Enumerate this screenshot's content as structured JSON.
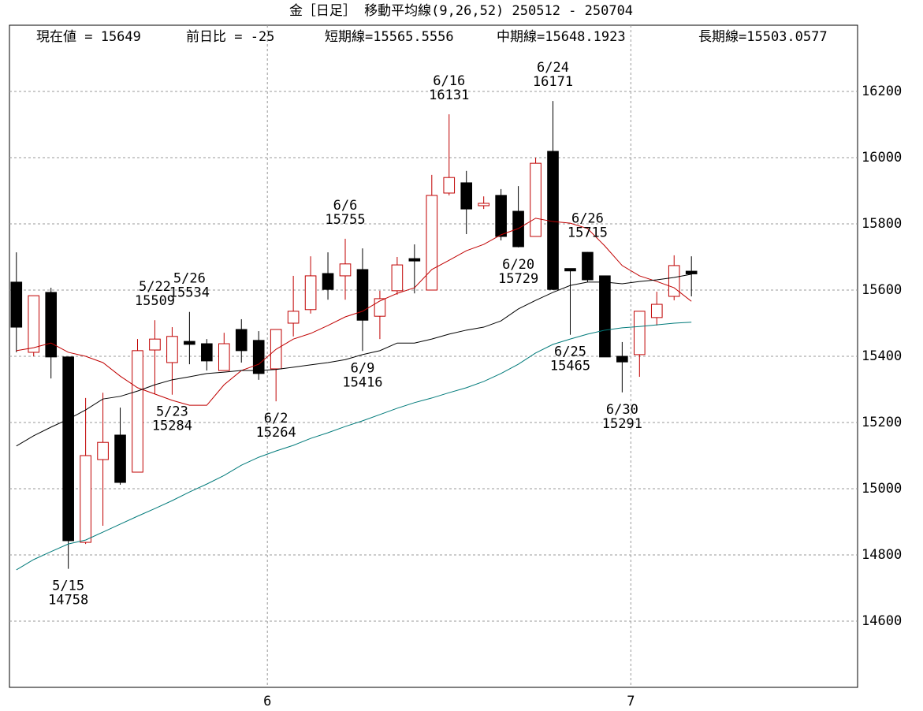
{
  "chart_data": {
    "type": "candlestick",
    "title": "金［日足］ 移動平均線(9,26,52)  250512 - 250704",
    "stats": [
      "現在値 = 15649",
      "前日比 = -25",
      "短期線=15565.5556",
      "中期線=15648.1923",
      "長期線=15503.0577"
    ],
    "x": [
      0,
      1,
      2,
      3,
      4,
      5,
      6,
      7,
      8,
      9,
      10,
      11,
      12,
      13,
      14,
      15,
      16,
      17,
      18,
      19,
      20,
      21,
      22,
      23,
      24,
      25,
      26,
      27,
      28,
      29,
      30,
      31,
      32,
      33,
      34,
      35,
      36,
      37,
      38,
      39
    ],
    "open": [
      15624,
      15412,
      15593,
      15398,
      14838,
      15088,
      15162,
      15050,
      15419,
      15381,
      15445,
      15438,
      15357,
      15481,
      15448,
      15362,
      15500,
      15541,
      15650,
      15643,
      15662,
      15521,
      15598,
      15695,
      15600,
      15893,
      15924,
      15855,
      15886,
      15838,
      15762,
      16019,
      15665,
      15714,
      15643,
      15400,
      15405,
      15517,
      15581,
      15657
    ],
    "high": [
      15714,
      15583,
      15607,
      15398,
      15274,
      15290,
      15245,
      15452,
      15509,
      15488,
      15534,
      15452,
      15471,
      15512,
      15476,
      15481,
      15643,
      15702,
      15714,
      15755,
      15726,
      15598,
      15700,
      15738,
      15948,
      16131,
      15960,
      15883,
      15905,
      15914,
      16000,
      16171,
      15665,
      15715,
      15643,
      15443,
      15536,
      15595,
      15705,
      15702
    ],
    "low": [
      15412,
      15400,
      15333,
      14758,
      14833,
      14888,
      15012,
      15050,
      15286,
      15284,
      15376,
      15357,
      15357,
      15381,
      15329,
      15264,
      15460,
      15529,
      15571,
      15571,
      15416,
      15452,
      15586,
      15590,
      15600,
      15886,
      15769,
      15845,
      15750,
      15729,
      15762,
      15600,
      15465,
      15624,
      15398,
      15291,
      15338,
      15493,
      15569,
      15581
    ],
    "close": [
      15488,
      15583,
      15398,
      14843,
      15100,
      15140,
      15019,
      15417,
      15452,
      15460,
      15436,
      15386,
      15438,
      15417,
      15348,
      15481,
      15536,
      15643,
      15602,
      15679,
      15509,
      15574,
      15676,
      15690,
      15886,
      15940,
      15845,
      15862,
      15762,
      15731,
      15983,
      15602,
      15660,
      15631,
      15398,
      15383,
      15536,
      15557,
      15674,
      15649
    ],
    "up_color": "#c00000",
    "down_color": "#000000",
    "series": [
      {
        "color": "#c00000",
        "values": [
          15417,
          15426,
          15440,
          15412,
          15400,
          15381,
          15340,
          15305,
          15286,
          15267,
          15252,
          15252,
          15314,
          15357,
          15376,
          15421,
          15452,
          15469,
          15493,
          15519,
          15536,
          15567,
          15590,
          15607,
          15662,
          15690,
          15719,
          15738,
          15767,
          15786,
          15817,
          15807,
          15802,
          15786,
          15733,
          15674,
          15643,
          15626,
          15607,
          15566
        ]
      },
      {
        "color": "#000000",
        "values": [
          15129,
          15160,
          15186,
          15210,
          15238,
          15271,
          15279,
          15295,
          15314,
          15329,
          15338,
          15348,
          15352,
          15357,
          15357,
          15360,
          15367,
          15374,
          15381,
          15390,
          15405,
          15417,
          15440,
          15440,
          15452,
          15467,
          15479,
          15488,
          15507,
          15543,
          15569,
          15593,
          15614,
          15624,
          15624,
          15619,
          15626,
          15631,
          15638,
          15648
        ]
      },
      {
        "color": "#007a7a",
        "values": [
          14755,
          14786,
          14810,
          14833,
          14845,
          14869,
          14893,
          14917,
          14940,
          14964,
          14990,
          15014,
          15040,
          15071,
          15095,
          15114,
          15131,
          15152,
          15169,
          15188,
          15205,
          15224,
          15243,
          15260,
          15274,
          15290,
          15305,
          15324,
          15348,
          15376,
          15410,
          15436,
          15452,
          15467,
          15479,
          15486,
          15490,
          15495,
          15500,
          15503
        ]
      }
    ],
    "annotations": [
      {
        "date": "5/15",
        "value": 14758,
        "x": 3,
        "side": "below"
      },
      {
        "date": "5/22",
        "value": 15509,
        "x": 8,
        "side": "above"
      },
      {
        "date": "5/26",
        "value": 15534,
        "x": 10,
        "side": "above"
      },
      {
        "date": "5/23",
        "value": 15284,
        "x": 9,
        "side": "below"
      },
      {
        "date": "6/2",
        "value": 15264,
        "x": 15,
        "side": "below"
      },
      {
        "date": "6/6",
        "value": 15755,
        "x": 19,
        "side": "above"
      },
      {
        "date": "6/9",
        "value": 15416,
        "x": 20,
        "side": "below"
      },
      {
        "date": "6/16",
        "value": 16131,
        "x": 25,
        "side": "above"
      },
      {
        "date": "6/24",
        "value": 16171,
        "x": 31,
        "side": "above"
      },
      {
        "date": "6/20",
        "value": 15729,
        "x": 29,
        "side": "below"
      },
      {
        "date": "6/26",
        "value": 15715,
        "x": 33,
        "side": "above"
      },
      {
        "date": "6/25",
        "value": 15465,
        "x": 32,
        "side": "below"
      },
      {
        "date": "6/30",
        "value": 15291,
        "x": 35,
        "side": "below"
      }
    ],
    "xlim": [
      -0.4,
      48.6
    ],
    "xticks": [
      {
        "value": 14.5,
        "label": "6"
      },
      {
        "value": 35.5,
        "label": "7"
      }
    ],
    "ylim": [
      14400,
      16400
    ],
    "yticks": [
      14600,
      14800,
      15000,
      15200,
      15400,
      15600,
      15800,
      16000,
      16200
    ],
    "grid": true
  }
}
